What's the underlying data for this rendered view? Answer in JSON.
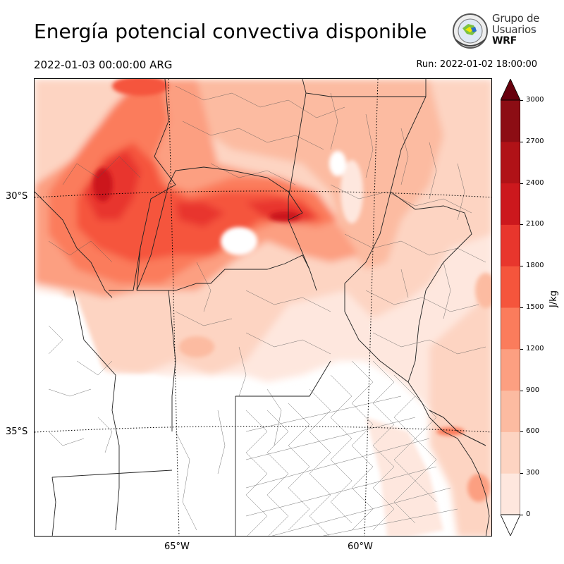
{
  "title": "Energía potencial convectiva disponible",
  "valid_time": "2022-01-03 00:00:00 ARG",
  "run_time": "Run: 2022-01-02 18:00:00",
  "logo": {
    "line1": "Grupo de",
    "line2": "Usuarios",
    "line3": "WRF"
  },
  "lat_labels": [
    "30°S",
    "35°S"
  ],
  "lon_labels": [
    "65°W",
    "60°W"
  ],
  "colorbar": {
    "unit": "J/kg",
    "ticks": [
      "3000",
      "2700",
      "2400",
      "2100",
      "1800",
      "1500",
      "1200",
      "900",
      "600",
      "300",
      "0"
    ],
    "levels": [
      0,
      300,
      600,
      900,
      1200,
      1500,
      1800,
      2100,
      2400,
      2700,
      3000
    ],
    "colors": [
      "#fee7de",
      "#fdd4c2",
      "#fcbba1",
      "#fc9f81",
      "#fb7c5c",
      "#f5553c",
      "#e8362d",
      "#cc181d",
      "#b01217",
      "#8c0d14",
      "#67000d"
    ]
  }
}
